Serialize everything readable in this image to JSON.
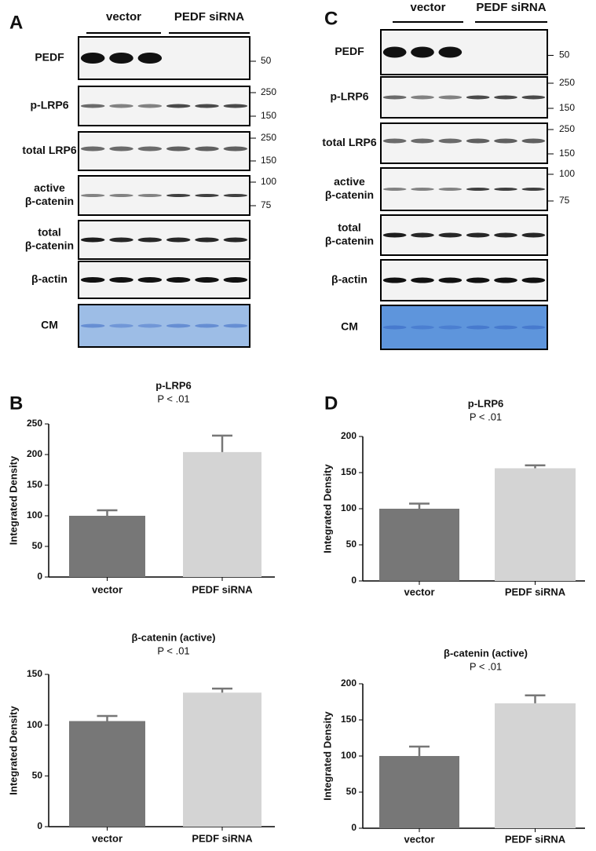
{
  "blots": [
    {
      "panel": "A",
      "groups": [
        "vector",
        "PEDF siRNA"
      ],
      "rows": [
        {
          "label": [
            "PEDF"
          ],
          "markers": [
            50
          ]
        },
        {
          "label": [
            "p-LRP6"
          ],
          "markers": [
            250,
            150
          ]
        },
        {
          "label": [
            "total LRP6"
          ],
          "markers": [
            250,
            150
          ]
        },
        {
          "label": [
            "active",
            "β-catenin"
          ],
          "markers": [
            100,
            75
          ]
        },
        {
          "label": [
            "total",
            "β-catenin"
          ],
          "markers": []
        },
        {
          "label": [
            "β-actin"
          ],
          "markers": []
        },
        {
          "label": [
            "CM"
          ],
          "markers": []
        }
      ]
    },
    {
      "panel": "C",
      "groups": [
        "vector",
        "PEDF siRNA"
      ],
      "rows": [
        {
          "label": [
            "PEDF"
          ],
          "markers": [
            50
          ]
        },
        {
          "label": [
            "p-LRP6"
          ],
          "markers": [
            250,
            150
          ]
        },
        {
          "label": [
            "total LRP6"
          ],
          "markers": [
            250,
            150
          ]
        },
        {
          "label": [
            "active",
            "β-catenin"
          ],
          "markers": [
            100,
            75
          ]
        },
        {
          "label": [
            "total",
            "β-catenin"
          ],
          "markers": []
        },
        {
          "label": [
            "β-actin"
          ],
          "markers": []
        },
        {
          "label": [
            "CM"
          ],
          "markers": []
        }
      ]
    }
  ],
  "chart_data": [
    {
      "type": "bar",
      "panel": "B",
      "title": "p-LRP6",
      "subtitle": "P < .01",
      "ylabel": "Integrated Density",
      "categories": [
        "vector",
        "PEDF siRNA"
      ],
      "values": [
        100,
        204
      ],
      "errors": [
        9,
        27
      ],
      "colors": [
        "#777777",
        "#d4d4d4"
      ],
      "ylim": [
        0,
        250
      ],
      "yticks": [
        0,
        50,
        100,
        150,
        200,
        250
      ]
    },
    {
      "type": "bar",
      "title": "β-catenin (active)",
      "subtitle": "P < .01",
      "ylabel": "Integrated Density",
      "categories": [
        "vector",
        "PEDF siRNA"
      ],
      "values": [
        104,
        132
      ],
      "errors": [
        5,
        4
      ],
      "colors": [
        "#777777",
        "#d4d4d4"
      ],
      "ylim": [
        0,
        150
      ],
      "yticks": [
        0,
        50,
        100,
        150
      ]
    },
    {
      "type": "bar",
      "panel": "D",
      "title": "p-LRP6",
      "subtitle": "P < .01",
      "ylabel": "Integrated Density",
      "categories": [
        "vector",
        "PEDF siRNA"
      ],
      "values": [
        100,
        156
      ],
      "errors": [
        7,
        4
      ],
      "colors": [
        "#777777",
        "#d4d4d4"
      ],
      "ylim": [
        0,
        200
      ],
      "yticks": [
        0,
        50,
        100,
        150,
        200
      ]
    },
    {
      "type": "bar",
      "title": "β-catenin (active)",
      "subtitle": "P < .01",
      "ylabel": "Integrated Density",
      "categories": [
        "vector",
        "PEDF siRNA"
      ],
      "values": [
        100,
        173
      ],
      "errors": [
        13,
        11
      ],
      "colors": [
        "#777777",
        "#d4d4d4"
      ],
      "ylim": [
        0,
        200
      ],
      "yticks": [
        0,
        50,
        100,
        150,
        200
      ]
    }
  ]
}
